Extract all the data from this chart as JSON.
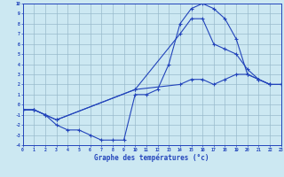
{
  "xlabel": "Graphe des températures (°c)",
  "xlim_min": 0,
  "xlim_max": 23,
  "ylim_min": -4,
  "ylim_max": 10,
  "background_color": "#cce8f2",
  "grid_color": "#99bbcc",
  "line_color": "#2244bb",
  "line1_x": [
    0,
    1,
    2,
    3,
    4,
    5,
    6,
    7,
    8,
    9,
    10,
    11,
    12,
    13,
    14,
    15,
    16,
    17,
    18,
    19,
    20,
    21,
    22,
    23
  ],
  "line1_y": [
    -0.5,
    -0.5,
    -1.0,
    -2.0,
    -2.5,
    -2.5,
    -3.0,
    -3.5,
    -3.5,
    -3.5,
    1.0,
    1.0,
    1.5,
    4.0,
    8.0,
    9.5,
    10.0,
    9.5,
    8.5,
    6.5,
    3.0,
    2.5,
    2.0,
    2.0
  ],
  "line2_x": [
    0,
    1,
    2,
    3,
    10,
    14,
    15,
    16,
    17,
    18,
    19,
    20,
    21,
    22,
    23
  ],
  "line2_y": [
    -0.5,
    -0.5,
    -1.0,
    -1.5,
    1.5,
    7.0,
    8.5,
    8.5,
    6.0,
    5.5,
    5.0,
    3.5,
    2.5,
    2.0,
    2.0
  ],
  "line3_x": [
    0,
    1,
    2,
    3,
    10,
    14,
    15,
    16,
    17,
    18,
    19,
    20,
    21,
    22,
    23
  ],
  "line3_y": [
    -0.5,
    -0.5,
    -1.0,
    -1.5,
    1.5,
    2.0,
    2.5,
    2.5,
    2.0,
    2.5,
    3.0,
    3.0,
    2.5,
    2.0,
    2.0
  ]
}
